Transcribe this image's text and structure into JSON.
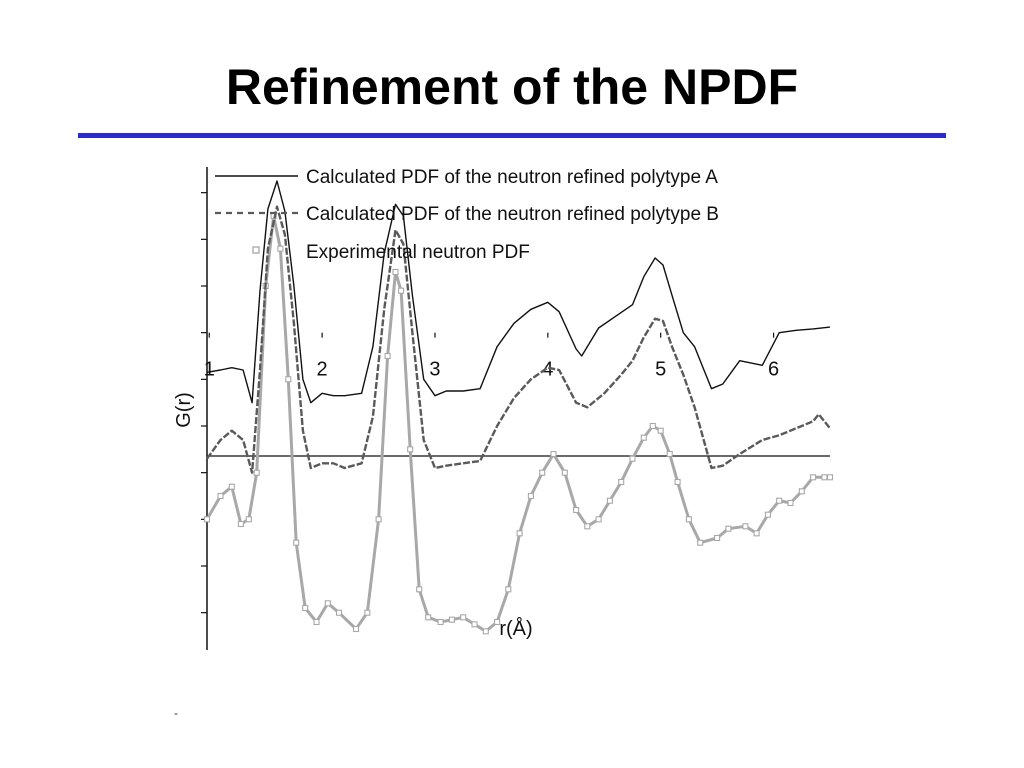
{
  "slide": {
    "title": "Refinement of the NPDF",
    "accent_color": "#2b2bd0",
    "footer_mark": "-"
  },
  "chart_data": {
    "type": "line",
    "xlabel": "r(Å)",
    "ylabel": "G(r)",
    "xlim": [
      0.98,
      6.5
    ],
    "ylim": [
      -6.8,
      3.55
    ],
    "x_ticks": [
      1,
      2,
      3,
      4,
      5,
      6
    ],
    "y_tick_labels": false,
    "grid": false,
    "legend_position": "top-right",
    "baseline_y": 0,
    "series": [
      {
        "name": "Calculated PDF of the neutron refined polytype A",
        "style": "solid",
        "color": "#111111",
        "points": [
          [
            0.98,
            -0.85
          ],
          [
            1.1,
            -0.8
          ],
          [
            1.2,
            -0.75
          ],
          [
            1.3,
            -0.8
          ],
          [
            1.38,
            -1.5
          ],
          [
            1.45,
            0.9
          ],
          [
            1.52,
            2.65
          ],
          [
            1.6,
            3.25
          ],
          [
            1.67,
            2.6
          ],
          [
            1.75,
            1.0
          ],
          [
            1.83,
            -1.0
          ],
          [
            1.9,
            -1.5
          ],
          [
            2.0,
            -1.3
          ],
          [
            2.1,
            -1.35
          ],
          [
            2.2,
            -1.35
          ],
          [
            2.35,
            -1.3
          ],
          [
            2.45,
            -0.3
          ],
          [
            2.55,
            1.7
          ],
          [
            2.65,
            2.75
          ],
          [
            2.72,
            2.5
          ],
          [
            2.8,
            0.8
          ],
          [
            2.9,
            -1.0
          ],
          [
            3.0,
            -1.35
          ],
          [
            3.1,
            -1.25
          ],
          [
            3.25,
            -1.25
          ],
          [
            3.4,
            -1.2
          ],
          [
            3.55,
            -0.3
          ],
          [
            3.7,
            0.2
          ],
          [
            3.85,
            0.5
          ],
          [
            4.0,
            0.65
          ],
          [
            4.1,
            0.45
          ],
          [
            4.25,
            -0.35
          ],
          [
            4.3,
            -0.5
          ],
          [
            4.45,
            0.1
          ],
          [
            4.6,
            0.35
          ],
          [
            4.75,
            0.6
          ],
          [
            4.85,
            1.2
          ],
          [
            4.95,
            1.6
          ],
          [
            5.02,
            1.45
          ],
          [
            5.1,
            0.8
          ],
          [
            5.2,
            0.0
          ],
          [
            5.3,
            -0.3
          ],
          [
            5.45,
            -1.2
          ],
          [
            5.55,
            -1.1
          ],
          [
            5.7,
            -0.6
          ],
          [
            5.9,
            -0.7
          ],
          [
            6.05,
            0.0
          ],
          [
            6.2,
            0.05
          ],
          [
            6.35,
            0.08
          ],
          [
            6.5,
            0.12
          ]
        ]
      },
      {
        "name": "Calculated PDF of the neutron refined polytype B",
        "style": "dashed",
        "color": "#5a5a5a",
        "points": [
          [
            0.98,
            -2.7
          ],
          [
            1.1,
            -2.3
          ],
          [
            1.2,
            -2.1
          ],
          [
            1.3,
            -2.3
          ],
          [
            1.38,
            -3.0
          ],
          [
            1.45,
            -0.8
          ],
          [
            1.52,
            1.8
          ],
          [
            1.6,
            2.7
          ],
          [
            1.67,
            2.1
          ],
          [
            1.75,
            0.2
          ],
          [
            1.83,
            -2.1
          ],
          [
            1.9,
            -2.9
          ],
          [
            2.0,
            -2.8
          ],
          [
            2.1,
            -2.8
          ],
          [
            2.2,
            -2.9
          ],
          [
            2.35,
            -2.8
          ],
          [
            2.45,
            -1.8
          ],
          [
            2.55,
            0.5
          ],
          [
            2.65,
            2.2
          ],
          [
            2.72,
            1.9
          ],
          [
            2.8,
            0.0
          ],
          [
            2.9,
            -2.3
          ],
          [
            3.0,
            -2.9
          ],
          [
            3.1,
            -2.85
          ],
          [
            3.25,
            -2.8
          ],
          [
            3.4,
            -2.75
          ],
          [
            3.55,
            -2.0
          ],
          [
            3.7,
            -1.4
          ],
          [
            3.85,
            -1.0
          ],
          [
            4.0,
            -0.75
          ],
          [
            4.1,
            -0.8
          ],
          [
            4.25,
            -1.5
          ],
          [
            4.35,
            -1.6
          ],
          [
            4.5,
            -1.3
          ],
          [
            4.65,
            -0.9
          ],
          [
            4.75,
            -0.6
          ],
          [
            4.85,
            -0.1
          ],
          [
            4.95,
            0.3
          ],
          [
            5.02,
            0.25
          ],
          [
            5.1,
            -0.3
          ],
          [
            5.2,
            -0.9
          ],
          [
            5.3,
            -1.6
          ],
          [
            5.45,
            -2.9
          ],
          [
            5.55,
            -2.85
          ],
          [
            5.7,
            -2.6
          ],
          [
            5.9,
            -2.3
          ],
          [
            6.05,
            -2.2
          ],
          [
            6.2,
            -2.05
          ],
          [
            6.35,
            -1.9
          ],
          [
            6.4,
            -1.75
          ],
          [
            6.5,
            -2.05
          ]
        ]
      },
      {
        "name": "Experimental neutron PDF",
        "style": "open-square-markers",
        "color": "#a8a8a8",
        "points": [
          [
            0.98,
            -4.0
          ],
          [
            1.1,
            -3.5
          ],
          [
            1.2,
            -3.3
          ],
          [
            1.28,
            -4.1
          ],
          [
            1.35,
            -4.0
          ],
          [
            1.42,
            -3.0
          ],
          [
            1.5,
            1.0
          ],
          [
            1.57,
            2.5
          ],
          [
            1.63,
            1.8
          ],
          [
            1.7,
            -1.0
          ],
          [
            1.77,
            -4.5
          ],
          [
            1.85,
            -5.9
          ],
          [
            1.95,
            -6.2
          ],
          [
            2.05,
            -5.8
          ],
          [
            2.15,
            -6.0
          ],
          [
            2.3,
            -6.35
          ],
          [
            2.4,
            -6.0
          ],
          [
            2.5,
            -4.0
          ],
          [
            2.58,
            -0.5
          ],
          [
            2.65,
            1.3
          ],
          [
            2.7,
            0.9
          ],
          [
            2.78,
            -2.5
          ],
          [
            2.86,
            -5.5
          ],
          [
            2.94,
            -6.1
          ],
          [
            3.05,
            -6.2
          ],
          [
            3.15,
            -6.15
          ],
          [
            3.25,
            -6.1
          ],
          [
            3.35,
            -6.25
          ],
          [
            3.45,
            -6.4
          ],
          [
            3.55,
            -6.2
          ],
          [
            3.65,
            -5.5
          ],
          [
            3.75,
            -4.3
          ],
          [
            3.85,
            -3.5
          ],
          [
            3.95,
            -3.0
          ],
          [
            4.05,
            -2.6
          ],
          [
            4.15,
            -3.0
          ],
          [
            4.25,
            -3.8
          ],
          [
            4.35,
            -4.15
          ],
          [
            4.45,
            -4.0
          ],
          [
            4.55,
            -3.6
          ],
          [
            4.65,
            -3.2
          ],
          [
            4.75,
            -2.7
          ],
          [
            4.85,
            -2.25
          ],
          [
            4.93,
            -2.0
          ],
          [
            5.0,
            -2.1
          ],
          [
            5.08,
            -2.6
          ],
          [
            5.15,
            -3.2
          ],
          [
            5.25,
            -4.0
          ],
          [
            5.35,
            -4.5
          ],
          [
            5.5,
            -4.4
          ],
          [
            5.6,
            -4.2
          ],
          [
            5.75,
            -4.15
          ],
          [
            5.85,
            -4.3
          ],
          [
            5.95,
            -3.9
          ],
          [
            6.05,
            -3.6
          ],
          [
            6.15,
            -3.65
          ],
          [
            6.25,
            -3.4
          ],
          [
            6.35,
            -3.1
          ],
          [
            6.45,
            -3.1
          ],
          [
            6.5,
            -3.1
          ]
        ]
      }
    ]
  }
}
